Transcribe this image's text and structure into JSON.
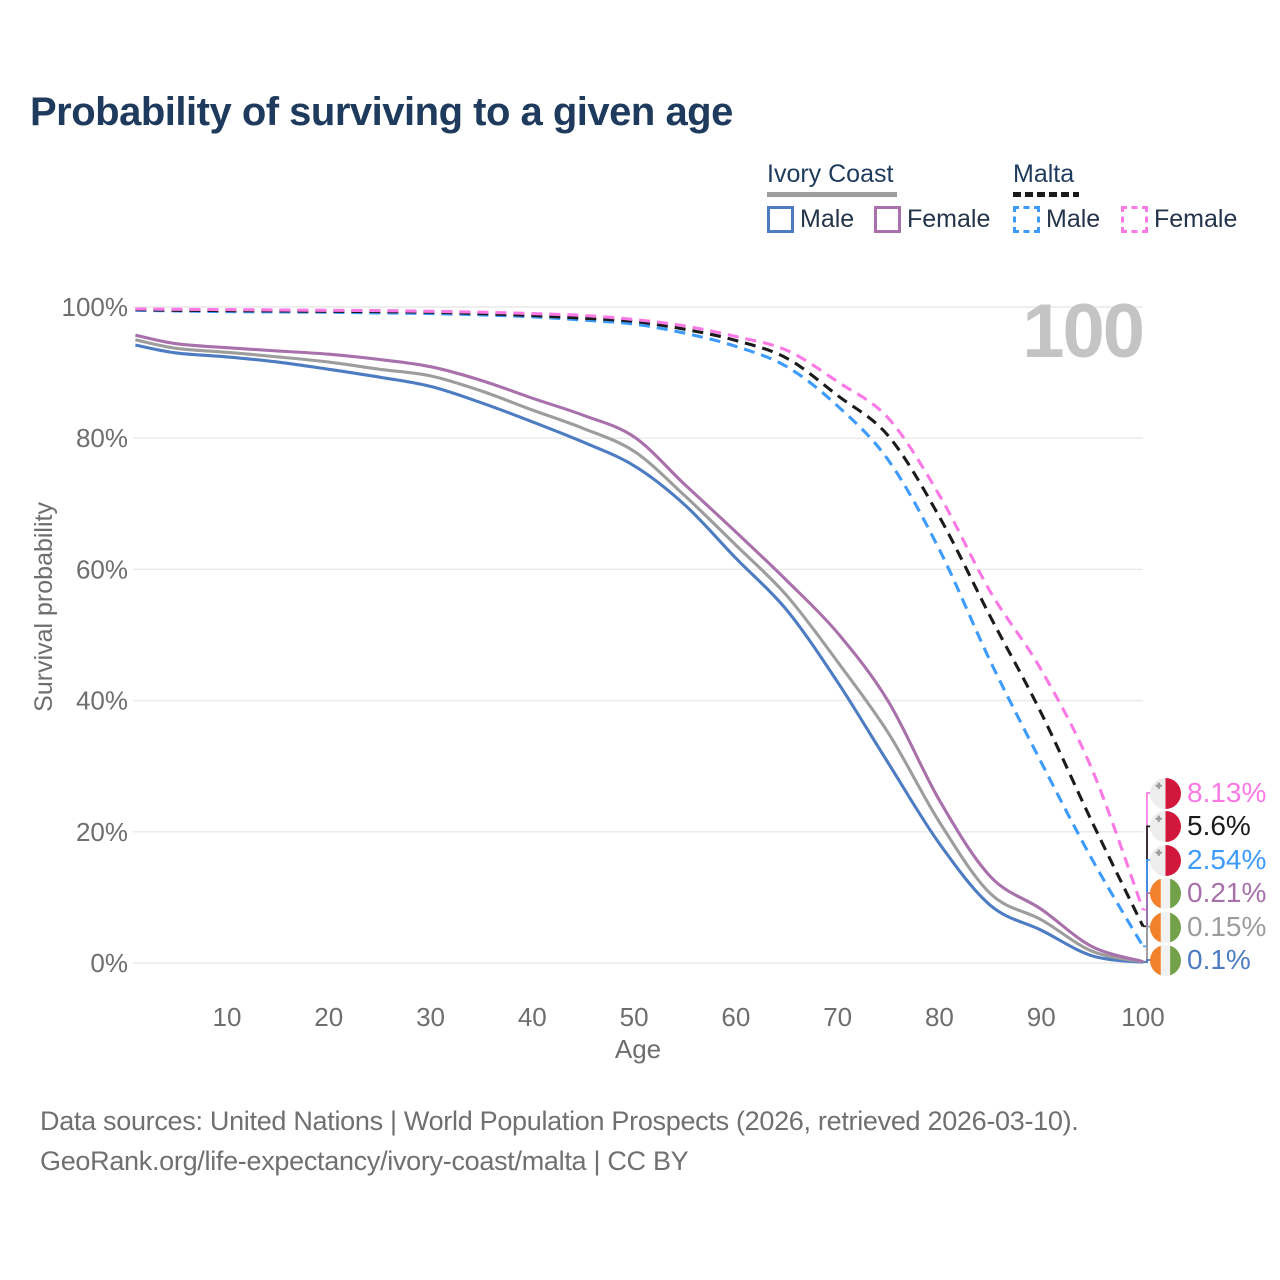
{
  "title": "Probability of surviving to a given age",
  "watermark": "100",
  "legend": {
    "groups": [
      {
        "label": "Ivory Coast",
        "line_style": "solid",
        "line_color": "#9d9d9d",
        "items": [
          {
            "label": "Male",
            "color": "#4d7cc2",
            "style": "solid"
          },
          {
            "label": "Female",
            "color": "#a971ab",
            "style": "solid"
          }
        ]
      },
      {
        "label": "Malta",
        "line_style": "dashed",
        "line_color": "#1b1b1b",
        "items": [
          {
            "label": "Male",
            "color": "#3d9bfc",
            "style": "dashed"
          },
          {
            "label": "Female",
            "color": "#fb79e4",
            "style": "dashed"
          }
        ]
      }
    ]
  },
  "end_labels": [
    {
      "value": "8.13%",
      "end_value": 8.13,
      "series": "Malta Female",
      "flag": "malta",
      "color": "#fb79e4"
    },
    {
      "value": "5.6%",
      "end_value": 5.6,
      "series": "Malta Combined",
      "flag": "malta",
      "color": "#1b1b1b"
    },
    {
      "value": "2.54%",
      "end_value": 2.54,
      "series": "Malta Male",
      "flag": "malta",
      "color": "#3d9bfc"
    },
    {
      "value": "0.21%",
      "end_value": 0.21,
      "series": "Ivory Coast Female",
      "flag": "ivory-coast",
      "color": "#a971ab"
    },
    {
      "value": "0.15%",
      "end_value": 0.15,
      "series": "Ivory Coast Combined",
      "flag": "ivory-coast",
      "color": "#9d9d9d"
    },
    {
      "value": "0.1%",
      "end_value": 0.1,
      "series": "Ivory Coast Male",
      "flag": "ivory-coast",
      "color": "#4d7cc2"
    }
  ],
  "flag_colors": {
    "malta_white": "#ededed",
    "malta_red": "#d2173c",
    "malta_cross": "#9b9b9b",
    "ivory_orange": "#f3802b",
    "ivory_white": "#f2f2f2",
    "ivory_green": "#72a14a"
  },
  "footer": {
    "line1": "Data sources: United Nations | World Population Prospects (2026, retrieved 2026-03-10).",
    "line2": "GeoRank.org/life-expectancy/ivory-coast/malta | CC BY"
  },
  "chart_data": {
    "type": "line",
    "title": "Probability of surviving to a given age",
    "xlabel": "Age",
    "ylabel": "Survival probability",
    "xlim": [
      0,
      100
    ],
    "ylim": [
      0,
      100
    ],
    "grid": "horizontal",
    "x_ticks": [
      10,
      20,
      30,
      40,
      50,
      60,
      70,
      80,
      90,
      100
    ],
    "y_ticks": [
      "0%",
      "20%",
      "40%",
      "60%",
      "80%",
      "100%"
    ],
    "ages": [
      1,
      5,
      10,
      15,
      20,
      25,
      30,
      35,
      40,
      45,
      50,
      55,
      60,
      65,
      70,
      75,
      80,
      85,
      90,
      95,
      100
    ],
    "series": [
      {
        "name": "Ivory Coast Male",
        "country": "Ivory Coast",
        "sex": "Male",
        "style": "solid",
        "color": "#4d7cc2",
        "end_label": "0.1%",
        "values": [
          94.2,
          93.0,
          92.4,
          91.6,
          90.5,
          89.3,
          87.9,
          85.4,
          82.5,
          79.4,
          75.8,
          69.8,
          61.7,
          53.8,
          42.8,
          30.4,
          18.2,
          8.8,
          5.0,
          1.1,
          0.1
        ]
      },
      {
        "name": "Ivory Coast Combined",
        "country": "Ivory Coast",
        "sex": "Combined",
        "style": "solid",
        "color": "#9d9d9d",
        "end_label": "0.15%",
        "values": [
          95.0,
          93.7,
          93.1,
          92.4,
          91.6,
          90.5,
          89.5,
          87.2,
          84.3,
          81.5,
          78.0,
          71.2,
          63.7,
          56.0,
          45.9,
          35.0,
          21.5,
          10.6,
          6.6,
          1.8,
          0.15
        ]
      },
      {
        "name": "Ivory Coast Female",
        "country": "Ivory Coast",
        "sex": "Female",
        "style": "solid",
        "color": "#a971ab",
        "end_label": "0.21%",
        "values": [
          95.7,
          94.4,
          93.8,
          93.3,
          92.8,
          92.0,
          90.9,
          88.8,
          86.1,
          83.5,
          80.2,
          72.9,
          65.7,
          58.3,
          50.3,
          39.8,
          24.8,
          13.2,
          8.2,
          2.5,
          0.21
        ]
      },
      {
        "name": "Malta Male",
        "country": "Malta",
        "sex": "Male",
        "style": "dashed",
        "color": "#3d9bfc",
        "end_label": "2.54%",
        "values": [
          99.5,
          99.4,
          99.3,
          99.25,
          99.2,
          99.1,
          99.0,
          98.8,
          98.5,
          98.0,
          97.4,
          96.0,
          94.0,
          90.9,
          84.9,
          76.6,
          63.0,
          46.0,
          30.6,
          15.8,
          2.54
        ]
      },
      {
        "name": "Malta Combined",
        "country": "Malta",
        "sex": "Combined",
        "style": "dashed",
        "color": "#1b1b1b",
        "end_label": "5.6%",
        "values": [
          99.6,
          99.5,
          99.45,
          99.4,
          99.35,
          99.3,
          99.2,
          99.0,
          98.7,
          98.3,
          97.8,
          96.6,
          94.9,
          92.2,
          86.5,
          80.3,
          68.0,
          52.8,
          38.1,
          21.5,
          5.6
        ]
      },
      {
        "name": "Malta Female",
        "country": "Malta",
        "sex": "Female",
        "style": "dashed",
        "color": "#fb79e4",
        "end_label": "8.13%",
        "values": [
          99.7,
          99.65,
          99.6,
          99.55,
          99.5,
          99.45,
          99.35,
          99.2,
          99.0,
          98.7,
          98.1,
          97.1,
          95.5,
          93.4,
          88.6,
          83.0,
          71.3,
          56.6,
          44.7,
          29.5,
          8.13
        ]
      }
    ]
  }
}
